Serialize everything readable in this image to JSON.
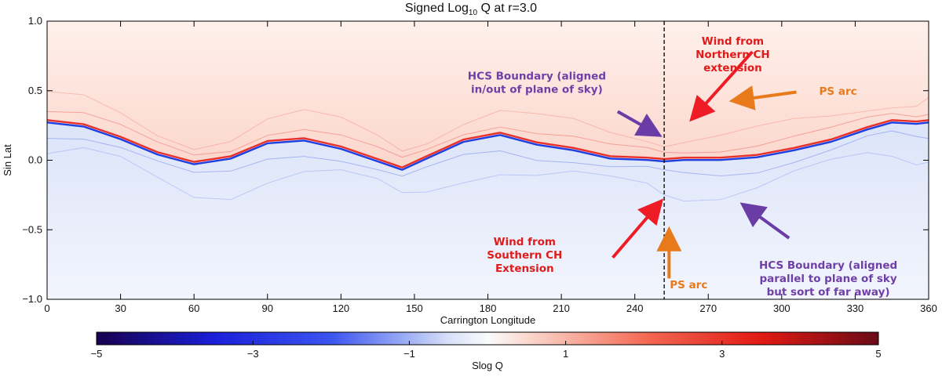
{
  "colors": {
    "positive": "#e8312a",
    "positive_light": "#fde3dc",
    "negative": "#1f3fe0",
    "negative_light": "#e6edfb",
    "arrow_red": "#ee1c24",
    "arrow_purple": "#6a3ca5",
    "arrow_orange": "#e87a1b",
    "text_red": "#e01b1b",
    "text_purple": "#6f3fa8",
    "text_orange": "#e87a1b"
  },
  "chart_data": {
    "type": "heatmap",
    "title_main": "Signed Log",
    "title_sub": "10",
    "title_rest": " Q at r=3.0",
    "xlabel": "Carrington Longitude",
    "ylabel": "Sin Lat",
    "xlim": [
      0,
      360
    ],
    "ylim": [
      -1.0,
      1.0
    ],
    "x_ticks": [
      0,
      30,
      60,
      90,
      120,
      150,
      180,
      210,
      240,
      270,
      300,
      330,
      360
    ],
    "x_tick_labels": [
      "0",
      "30",
      "60",
      "90",
      "120",
      "150",
      "180",
      "210",
      "240",
      "270",
      "300",
      "330",
      "360"
    ],
    "y_ticks": [
      -1.0,
      -0.5,
      0.0,
      0.5,
      1.0
    ],
    "y_tick_labels": [
      "−1.0",
      "−0.5",
      "0.0",
      "0.5",
      "1.0"
    ],
    "colorbar": {
      "label": "Slog Q",
      "range": [
        -5,
        5
      ],
      "ticks": [
        -5,
        -3,
        -1,
        1,
        3,
        5
      ],
      "tick_labels": [
        "−5",
        "−3",
        "−1",
        "1",
        "3",
        "5"
      ]
    },
    "vertical_marker_longitude": 252,
    "polarity_boundary": {
      "x": [
        0,
        15,
        30,
        45,
        60,
        75,
        90,
        105,
        120,
        135,
        145,
        155,
        170,
        185,
        200,
        215,
        230,
        245,
        252,
        260,
        275,
        290,
        305,
        320,
        335,
        345,
        355,
        360
      ],
      "y": [
        0.28,
        0.25,
        0.16,
        0.05,
        -0.02,
        0.02,
        0.13,
        0.15,
        0.09,
        0.0,
        -0.06,
        0.02,
        0.14,
        0.19,
        0.12,
        0.08,
        0.02,
        0.01,
        0.0,
        0.01,
        0.01,
        0.03,
        0.08,
        0.14,
        0.23,
        0.28,
        0.27,
        0.28
      ]
    },
    "annotations": [
      {
        "lines": [
          "Wind from",
          "Northern CH",
          "extension"
        ],
        "color_key": "text_red",
        "lon": 280,
        "lat": 0.83
      },
      {
        "lines": [
          "HCS Boundary (aligned",
          "in/out of plane of sky)"
        ],
        "color_key": "text_purple",
        "lon": 200,
        "lat": 0.58
      },
      {
        "lines": [
          "PS arc"
        ],
        "color_key": "text_orange",
        "lon": 323,
        "lat": 0.47
      },
      {
        "lines": [
          "Wind from",
          "Southern CH",
          "Extension"
        ],
        "color_key": "text_red",
        "lon": 195,
        "lat": -0.61
      },
      {
        "lines": [
          "HCS Boundary (aligned",
          "parallel to plane of sky",
          "but sort of far away)"
        ],
        "color_key": "text_purple",
        "lon": 319,
        "lat": -0.78
      },
      {
        "lines": [
          "PS arc"
        ],
        "color_key": "text_orange",
        "lon": 262,
        "lat": -0.92
      }
    ],
    "arrows": [
      {
        "color_key": "arrow_red",
        "from": [
          288,
          0.78
        ],
        "to": [
          264,
          0.31
        ]
      },
      {
        "color_key": "arrow_purple",
        "from": [
          233,
          0.35
        ],
        "to": [
          249,
          0.19
        ]
      },
      {
        "color_key": "arrow_orange",
        "from": [
          306,
          0.49
        ],
        "to": [
          281,
          0.43
        ]
      },
      {
        "color_key": "arrow_red",
        "from": [
          231,
          -0.7
        ],
        "to": [
          250,
          -0.31
        ]
      },
      {
        "color_key": "arrow_purple",
        "from": [
          303,
          -0.56
        ],
        "to": [
          285,
          -0.33
        ]
      },
      {
        "color_key": "arrow_orange",
        "from": [
          254,
          -0.85
        ],
        "to": [
          254,
          -0.52
        ]
      }
    ]
  }
}
